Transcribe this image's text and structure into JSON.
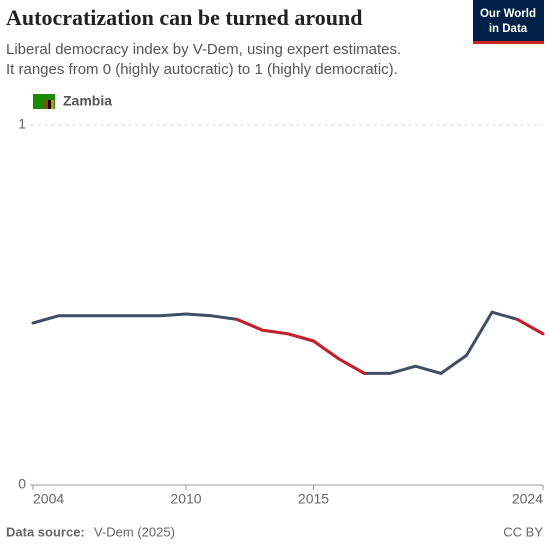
{
  "chart_data": {
    "type": "line",
    "title": "Autocratization can be turned around",
    "subtitle": [
      "Liberal democracy index by V-Dem, using expert estimates.",
      "It ranges from 0 (highly autocratic) to 1 (highly democratic)."
    ],
    "logo": [
      "Our World",
      "in Data"
    ],
    "x": [
      2004,
      2005,
      2006,
      2007,
      2008,
      2009,
      2010,
      2011,
      2012,
      2013,
      2014,
      2015,
      2016,
      2017,
      2018,
      2019,
      2020,
      2021,
      2022,
      2023,
      2024
    ],
    "series": [
      {
        "name": "Zambia",
        "color": "#3f4e63",
        "highlight_color": "#c8202a",
        "highlight": [
          [
            2012,
            2017
          ],
          [
            2023,
            2024
          ]
        ],
        "values": [
          0.45,
          0.47,
          0.47,
          0.47,
          0.47,
          0.47,
          0.475,
          0.47,
          0.46,
          0.43,
          0.42,
          0.4,
          0.35,
          0.31,
          0.31,
          0.33,
          0.31,
          0.36,
          0.48,
          0.46,
          0.42
        ]
      }
    ],
    "xlim": [
      2004,
      2024
    ],
    "xticks": [
      2004,
      2010,
      2015,
      2024
    ],
    "ylim": [
      0,
      1
    ],
    "yticks": [
      0,
      1
    ],
    "grid": true,
    "source_label": "Data source:",
    "source": "V-Dem (2025)",
    "license": "CC BY"
  }
}
